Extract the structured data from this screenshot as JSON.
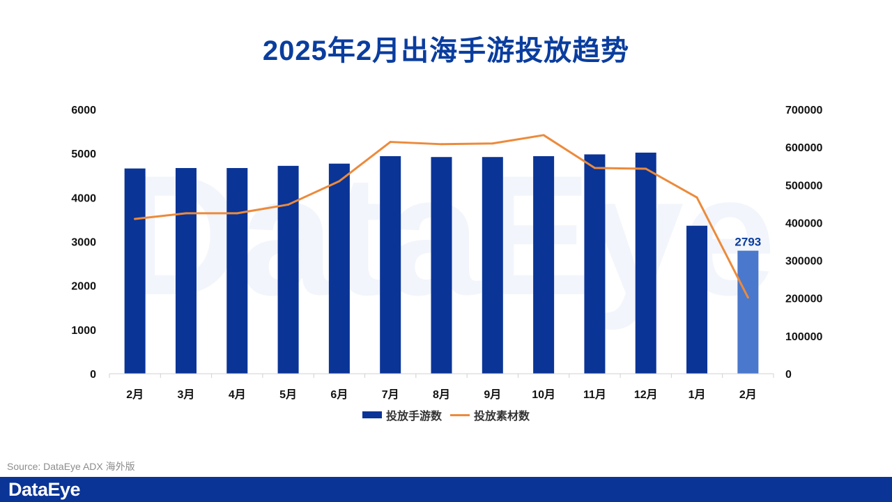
{
  "chart_data": {
    "type": "bar",
    "title": "2025年2月出海手游投放趋势",
    "categories": [
      "2月",
      "3月",
      "4月",
      "5月",
      "6月",
      "7月",
      "8月",
      "9月",
      "10月",
      "11月",
      "12月",
      "1月",
      "2月"
    ],
    "series": [
      {
        "name": "投放手游数",
        "type": "bar",
        "axis": "left",
        "color": "#0a3496",
        "highlight_color": "#4a78cc",
        "values": [
          4660,
          4670,
          4670,
          4720,
          4770,
          4940,
          4920,
          4920,
          4940,
          4980,
          5020,
          3360,
          2793
        ]
      },
      {
        "name": "投放素材数",
        "type": "line",
        "axis": "right",
        "color": "#ec8a3b",
        "values": [
          410000,
          425000,
          425000,
          448000,
          510000,
          614000,
          608000,
          610000,
          632000,
          545000,
          543000,
          467000,
          202000
        ]
      }
    ],
    "y_left": {
      "min": 0,
      "max": 6000,
      "ticks": [
        0,
        1000,
        2000,
        3000,
        4000,
        5000,
        6000
      ]
    },
    "y_right": {
      "min": 0,
      "max": 700000,
      "ticks": [
        0,
        100000,
        200000,
        300000,
        400000,
        500000,
        600000,
        700000
      ]
    },
    "highlight_index": 12,
    "data_labels": [
      {
        "index": 12,
        "text": "2793"
      }
    ],
    "legend_position": "bottom"
  },
  "watermark": "DataEye",
  "source": "Source: DataEye ADX 海外版",
  "footer": {
    "brand": "DataEye"
  }
}
